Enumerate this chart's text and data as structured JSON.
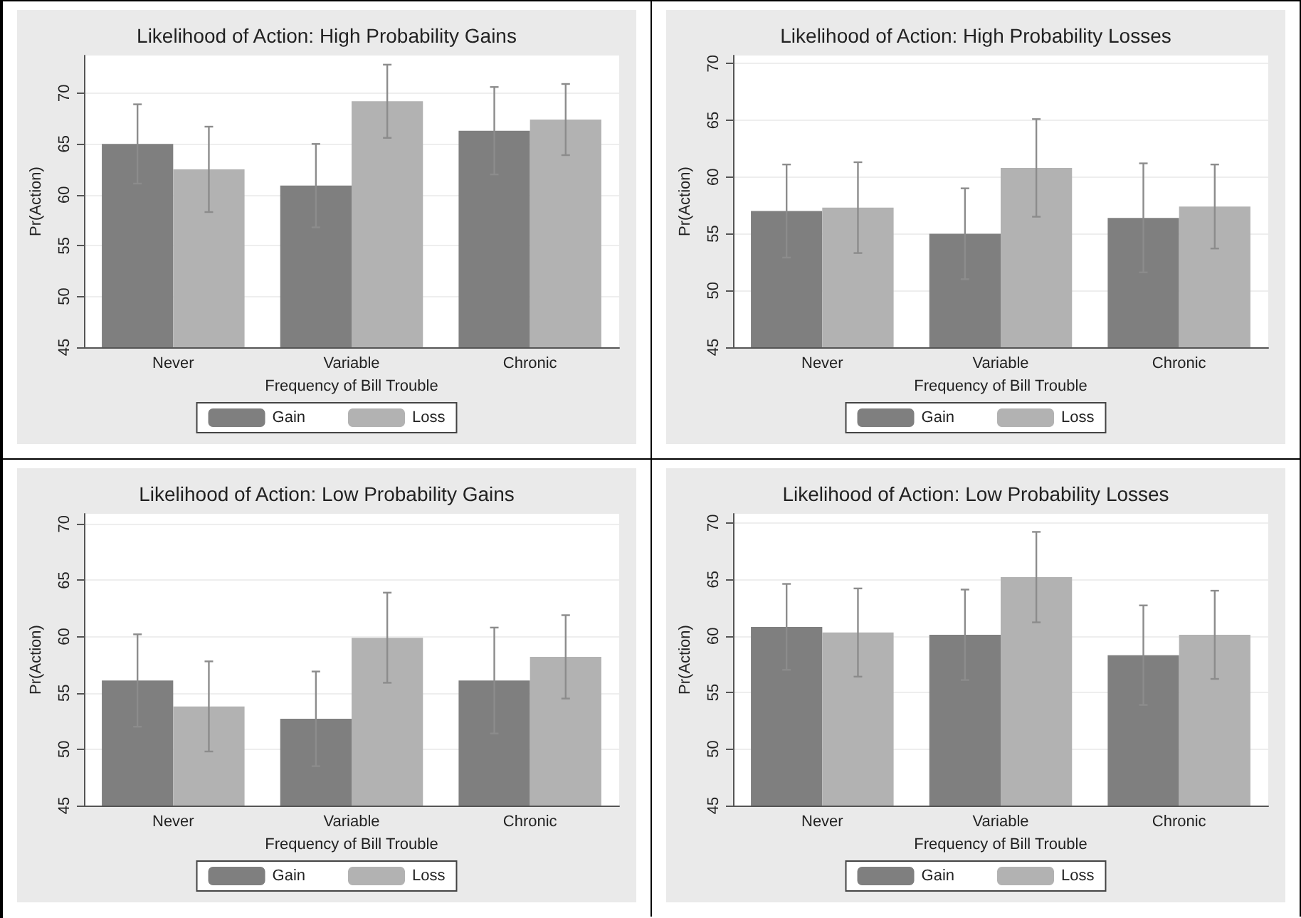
{
  "chart_data": [
    {
      "type": "bar",
      "title": "Likelihood of Action: High Probability Gains",
      "xlabel": "Frequency of Bill Trouble",
      "ylabel": "Pr(Action)",
      "categories": [
        "Never",
        "Variable",
        "Chronic"
      ],
      "series": [
        {
          "name": "Gain",
          "color": "#7f7f7f",
          "values": [
            65.0,
            60.9,
            66.3
          ],
          "errors": [
            3.9,
            4.1,
            4.3
          ]
        },
        {
          "name": "Loss",
          "color": "#b2b2b2",
          "values": [
            62.5,
            69.2,
            67.4
          ],
          "errors": [
            4.2,
            3.6,
            3.5
          ]
        }
      ],
      "ylim": [
        45,
        73.7
      ],
      "yticks": [
        45,
        50,
        55,
        60,
        65,
        70
      ],
      "grid": "y",
      "legend": "bottom"
    },
    {
      "type": "bar",
      "title": "Likelihood of Action: High Probability Losses",
      "xlabel": "Frequency of Bill Trouble",
      "ylabel": "Pr(Action)",
      "categories": [
        "Never",
        "Variable",
        "Chronic"
      ],
      "series": [
        {
          "name": "Gain",
          "color": "#7f7f7f",
          "values": [
            57.0,
            55.0,
            56.4
          ],
          "errors": [
            4.1,
            4.0,
            4.8
          ]
        },
        {
          "name": "Loss",
          "color": "#b2b2b2",
          "values": [
            57.3,
            60.8,
            57.4
          ],
          "errors": [
            4.0,
            4.3,
            3.7
          ]
        }
      ],
      "ylim": [
        45,
        70.7
      ],
      "yticks": [
        45,
        50,
        55,
        60,
        65,
        70
      ],
      "grid": "y",
      "legend": "bottom"
    },
    {
      "type": "bar",
      "title": "Likelihood of Action: Low Probability Gains",
      "xlabel": "Frequency of Bill Trouble",
      "ylabel": "Pr(Action)",
      "categories": [
        "Never",
        "Variable",
        "Chronic"
      ],
      "series": [
        {
          "name": "Gain",
          "color": "#7f7f7f",
          "values": [
            56.1,
            52.7,
            56.1
          ],
          "errors": [
            4.1,
            4.2,
            4.7
          ]
        },
        {
          "name": "Loss",
          "color": "#b2b2b2",
          "values": [
            53.8,
            59.9,
            58.2
          ],
          "errors": [
            4.0,
            4.0,
            3.7
          ]
        }
      ],
      "ylim": [
        45,
        70.9
      ],
      "yticks": [
        45,
        50,
        55,
        60,
        65,
        70
      ],
      "grid": "y",
      "legend": "bottom"
    },
    {
      "type": "bar",
      "title": "Likelihood of Action: Low Probability Losses",
      "xlabel": "Frequency of Bill Trouble",
      "ylabel": "Pr(Action)",
      "categories": [
        "Never",
        "Variable",
        "Chronic"
      ],
      "series": [
        {
          "name": "Gain",
          "color": "#7f7f7f",
          "values": [
            60.8,
            60.1,
            58.3
          ],
          "errors": [
            3.8,
            4.0,
            4.4
          ]
        },
        {
          "name": "Loss",
          "color": "#b2b2b2",
          "values": [
            60.3,
            65.2,
            60.1
          ],
          "errors": [
            3.9,
            4.0,
            3.9
          ]
        }
      ],
      "ylim": [
        45,
        70.8
      ],
      "yticks": [
        45,
        50,
        55,
        60,
        65,
        70
      ],
      "grid": "y",
      "legend": "bottom"
    }
  ]
}
